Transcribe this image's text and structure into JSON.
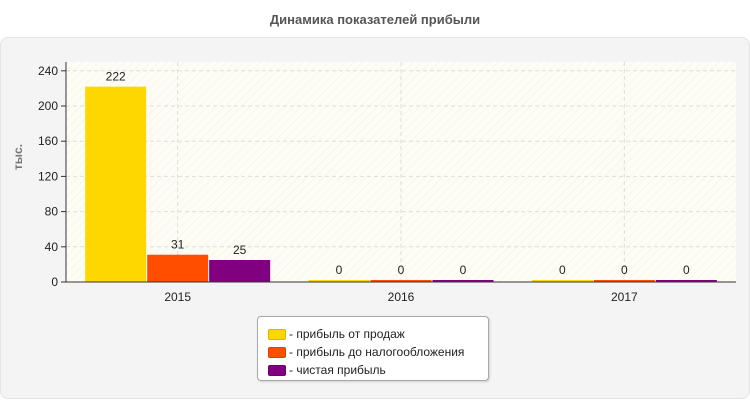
{
  "chart_data": {
    "type": "bar",
    "title": "Динамика показателей прибыли",
    "ylabel": "тыс.",
    "xlabel": "",
    "categories": [
      "2015",
      "2016",
      "2017"
    ],
    "ylim": [
      0,
      250
    ],
    "yticks": [
      0,
      40,
      80,
      120,
      160,
      200,
      240
    ],
    "grid": true,
    "legend_position": "bottom",
    "series": [
      {
        "name": "- прибыль от продаж",
        "color": "#FFD700",
        "values": [
          222,
          0,
          0
        ]
      },
      {
        "name": "- прибыль до налогообложения",
        "color": "#FF4E00",
        "values": [
          31,
          0,
          0
        ]
      },
      {
        "name": "- чистая прибыль",
        "color": "#800080",
        "values": [
          25,
          0,
          0
        ]
      }
    ]
  }
}
